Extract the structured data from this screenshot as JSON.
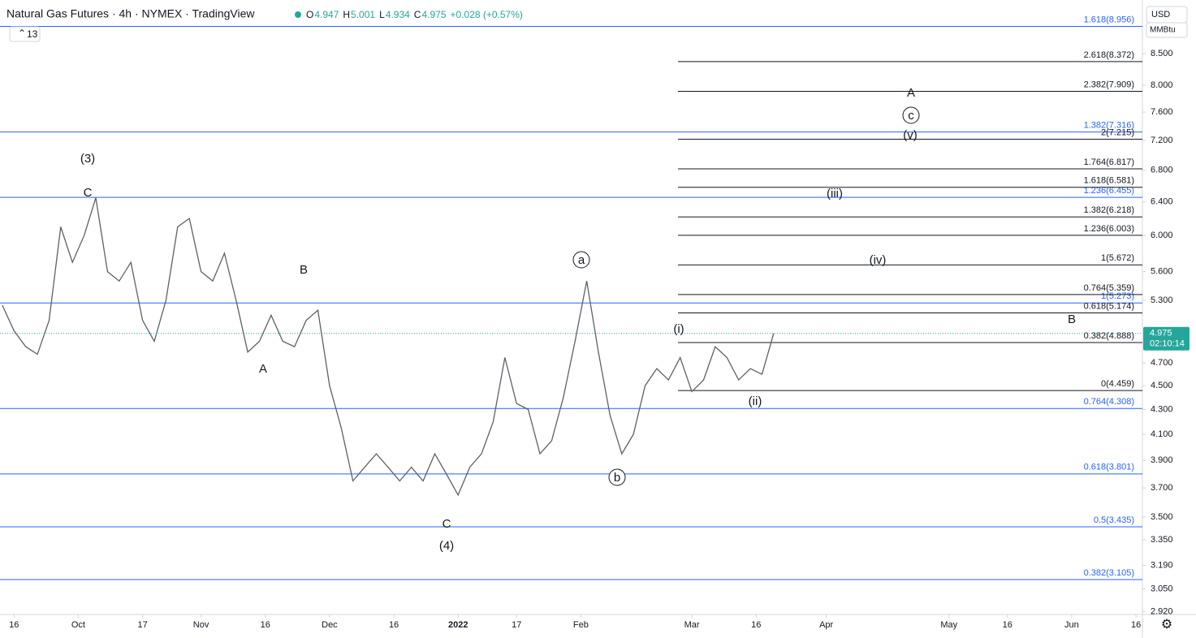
{
  "chart_data": {
    "type": "line",
    "title": "Natural Gas Futures · 4h · NYMEX · TradingView",
    "ohlc": [
      {
        "label": "O",
        "value": "4.947"
      },
      {
        "label": "H",
        "value": "5.001"
      },
      {
        "label": "L",
        "value": "4.934"
      },
      {
        "label": "C",
        "value": "4.975"
      }
    ],
    "change": "+0.028 (+0.57%)",
    "indicator_count": "13",
    "currency": "USD",
    "unit": "MMBtu",
    "countdown": "02:10:14",
    "last_price": {
      "value": 4.975,
      "label": "4.975"
    },
    "color": "#5d606b",
    "log_scale": true,
    "ylim": [
      2.904,
      9.42
    ],
    "yticks": [
      {
        "value": 2.92,
        "label": "2.920"
      },
      {
        "value": 3.05,
        "label": "3.050"
      },
      {
        "value": 3.19,
        "label": "3.190"
      },
      {
        "value": 3.35,
        "label": "3.350"
      },
      {
        "value": 3.5,
        "label": "3.500"
      },
      {
        "value": 3.7,
        "label": "3.700"
      },
      {
        "value": 3.9,
        "label": "3.900"
      },
      {
        "value": 4.1,
        "label": "4.100"
      },
      {
        "value": 4.3,
        "label": "4.300"
      },
      {
        "value": 4.5,
        "label": "4.500"
      },
      {
        "value": 4.7,
        "label": "4.700"
      },
      {
        "value": 5.3,
        "label": "5.300"
      },
      {
        "value": 5.6,
        "label": "5.600"
      },
      {
        "value": 6.0,
        "label": "6.000"
      },
      {
        "value": 6.4,
        "label": "6.400"
      },
      {
        "value": 6.8,
        "label": "6.800"
      },
      {
        "value": 7.2,
        "label": "7.200"
      },
      {
        "value": 7.6,
        "label": "7.600"
      },
      {
        "value": 8.0,
        "label": "8.000"
      },
      {
        "value": 8.5,
        "label": "8.500"
      }
    ],
    "xlim": [
      -2.4,
      193.1
    ],
    "xticks": [
      {
        "value": 0,
        "label": "16"
      },
      {
        "value": 11,
        "label": "Oct"
      },
      {
        "value": 22,
        "label": "17"
      },
      {
        "value": 32,
        "label": "Nov"
      },
      {
        "value": 43,
        "label": "16"
      },
      {
        "value": 54,
        "label": "Dec"
      },
      {
        "value": 65,
        "label": "16"
      },
      {
        "value": 76,
        "label": "2022"
      },
      {
        "value": 86,
        "label": "17"
      },
      {
        "value": 97,
        "label": "Feb"
      },
      {
        "value": 116,
        "label": "Mar"
      },
      {
        "value": 127,
        "label": "16"
      },
      {
        "value": 139,
        "label": "Apr"
      },
      {
        "value": 160,
        "label": "May"
      },
      {
        "value": 170,
        "label": "16"
      },
      {
        "value": 181,
        "label": "Jun"
      },
      {
        "value": 192,
        "label": "16"
      }
    ],
    "x": [
      -2,
      0,
      2,
      4,
      6,
      8,
      10,
      12,
      14,
      16,
      18,
      20,
      22,
      24,
      26,
      28,
      30,
      32,
      34,
      36,
      38,
      40,
      42,
      44,
      46,
      48,
      50,
      52,
      54,
      56,
      58,
      60,
      62,
      64,
      66,
      68,
      70,
      72,
      74,
      76,
      78,
      80,
      82,
      84,
      86,
      88,
      90,
      92,
      94,
      96,
      98,
      100,
      102,
      104,
      106,
      108,
      110,
      112,
      114,
      116,
      118,
      120,
      122,
      124,
      126,
      128,
      130
    ],
    "values": [
      5.25,
      5.0,
      4.85,
      4.78,
      5.1,
      6.1,
      5.7,
      6.0,
      6.45,
      5.6,
      5.5,
      5.7,
      5.1,
      4.9,
      5.3,
      6.1,
      6.2,
      5.6,
      5.5,
      5.8,
      5.3,
      4.8,
      4.9,
      5.15,
      4.9,
      4.85,
      5.1,
      5.2,
      4.5,
      4.15,
      3.75,
      3.85,
      3.95,
      3.85,
      3.75,
      3.85,
      3.75,
      3.95,
      3.8,
      3.65,
      3.85,
      3.95,
      4.2,
      4.75,
      4.35,
      4.3,
      3.95,
      4.05,
      4.4,
      4.9,
      5.5,
      4.8,
      4.25,
      3.95,
      4.1,
      4.5,
      4.65,
      4.55,
      4.75,
      4.45,
      4.55,
      4.85,
      4.75,
      4.55,
      4.65,
      4.6,
      4.975
    ],
    "fib_blue": [
      {
        "value": 8.956,
        "label": "1.618(8.956)"
      },
      {
        "value": 7.316,
        "label": "1.382(7.316)"
      },
      {
        "value": 6.455,
        "label": "1.236(6.455)"
      },
      {
        "value": 5.273,
        "label": "1(5.273)"
      },
      {
        "value": 4.308,
        "label": "0.764(4.308)"
      },
      {
        "value": 3.801,
        "label": "0.618(3.801)"
      },
      {
        "value": 3.435,
        "label": "0.5(3.435)"
      },
      {
        "value": 3.105,
        "label": "0.382(3.105)"
      }
    ],
    "fib_black": [
      {
        "value": 8.372,
        "label": "2.618(8.372)"
      },
      {
        "value": 7.909,
        "label": "2.382(7.909)"
      },
      {
        "value": 7.215,
        "label": "2(7.215)"
      },
      {
        "value": 6.817,
        "label": "1.764(6.817)"
      },
      {
        "value": 6.581,
        "label": "1.618(6.581)"
      },
      {
        "value": 6.218,
        "label": "1.382(6.218)"
      },
      {
        "value": 6.003,
        "label": "1.236(6.003)"
      },
      {
        "value": 5.672,
        "label": "1(5.672)"
      },
      {
        "value": 5.359,
        "label": "0.764(5.359)"
      },
      {
        "value": 5.174,
        "label": "0.618(5.174)"
      },
      {
        "value": 4.888,
        "label": "0.382(4.888)"
      },
      {
        "value": 4.459,
        "label": "0(4.459)"
      }
    ],
    "annotations": [
      "(3)",
      "C",
      "B",
      "A",
      "C",
      "(4)",
      "a",
      "b",
      "(i)",
      "(ii)",
      "(iii)",
      "(iv)",
      "(v)",
      "c",
      "A",
      "B"
    ]
  }
}
